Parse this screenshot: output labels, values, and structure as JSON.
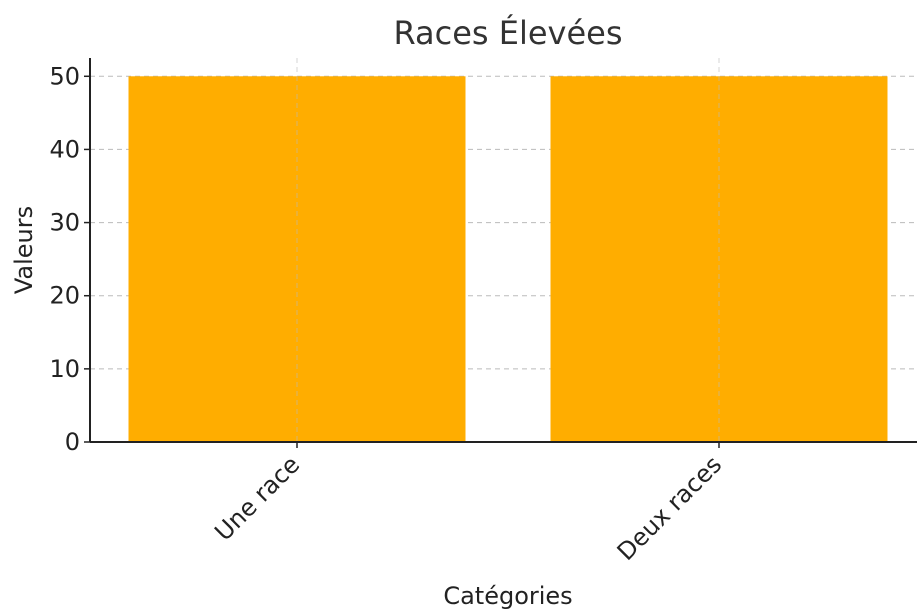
{
  "chart_data": {
    "type": "bar",
    "title": "Races Élevées",
    "xlabel": "Catégories",
    "ylabel": "Valeurs",
    "categories": [
      "Une race",
      "Deux races"
    ],
    "values": [
      50,
      50
    ],
    "ylim": [
      0,
      52.5
    ],
    "yticks": [
      0,
      10,
      20,
      30,
      40,
      50
    ],
    "grid": true,
    "bar_color": "#FFAD00"
  }
}
